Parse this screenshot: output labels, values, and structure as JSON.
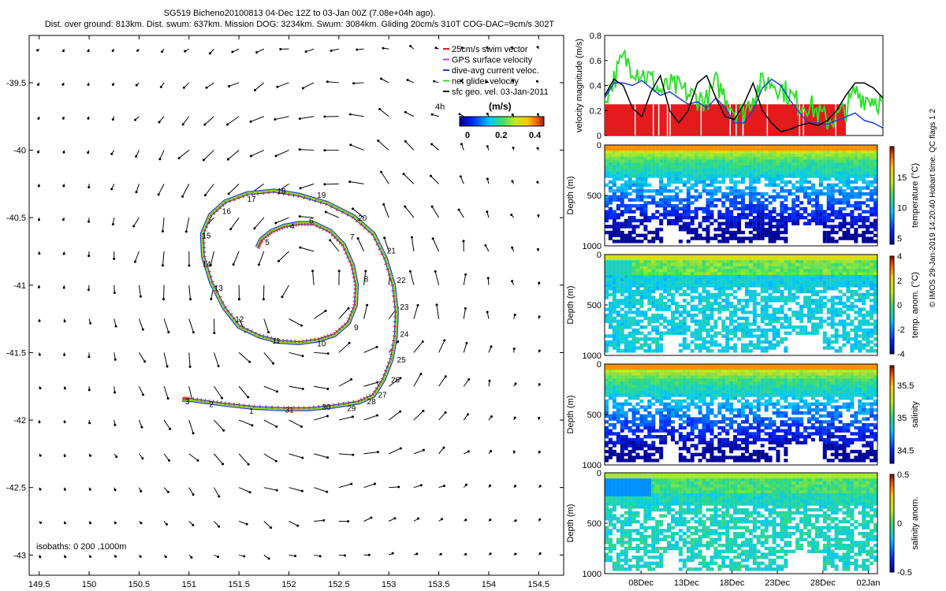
{
  "header": {
    "line1": "SG519 Bicheno20100813 04-Dec 12Z to 03-Jan 00Z (7.08e+04h ago).",
    "line2": "Dist. over ground: 813km. Dist. swum: 637km. Mission DOG: 3234km. Swum: 3084km. Gliding 20cm/s 310T COG-DAC=9cm/s 302T"
  },
  "footer_note": "© IMOS 29-Jan-2019 14:20:40 Hobart time. QC flags 1  2",
  "colors": {
    "swim": "#e41a1c",
    "gps": "#b040ff",
    "dac": "#1f3fd6",
    "net": "#2ee02e",
    "geo": "#000000"
  },
  "chart_data": [
    {
      "type": "scatter",
      "name": "map",
      "xlim": [
        149.4,
        154.75
      ],
      "ylim": [
        -43.15,
        -39.15
      ],
      "x_ticks": [
        "149.5",
        "150",
        "150.5",
        "151",
        "151.5",
        "152",
        "152.5",
        "153",
        "153.5",
        "154",
        "154.5"
      ],
      "x_tick_values": [
        149.5,
        150,
        150.5,
        151,
        151.5,
        152,
        152.5,
        153,
        153.5,
        154,
        154.5
      ],
      "y_ticks": [
        "-39.5",
        "-40",
        "-40.5",
        "-41",
        "-41.5",
        "-42",
        "-42.5",
        "-43"
      ],
      "y_tick_values": [
        -39.5,
        -40,
        -40.5,
        -41,
        -41.5,
        -42,
        -42.5,
        -43
      ],
      "legend": {
        "entries": [
          "25cm/s swim vector",
          "GPS surface velocity",
          "dive-avg current veloc.",
          "net glider velocity",
          "sfc geo. vel. 03-Jan-2011"
        ],
        "position": "top-right"
      },
      "label_4h": "4h",
      "colorbar": {
        "label": "(m/s)",
        "ticks": [
          "0",
          "0.2",
          "0.4"
        ],
        "tick_values": [
          0,
          0.2,
          0.4
        ],
        "range": [
          0,
          0.5
        ]
      },
      "isobaths_label": "isobaths: 0   200 ,1000m",
      "track": [
        [
          151.68,
          -40.72
        ],
        [
          151.72,
          -40.66
        ],
        [
          151.82,
          -40.6
        ],
        [
          151.95,
          -40.56
        ],
        [
          152.1,
          -40.54
        ],
        [
          152.25,
          -40.54
        ],
        [
          152.42,
          -40.6
        ],
        [
          152.55,
          -40.7
        ],
        [
          152.64,
          -40.85
        ],
        [
          152.68,
          -41.0
        ],
        [
          152.67,
          -41.15
        ],
        [
          152.6,
          -41.28
        ],
        [
          152.46,
          -41.37
        ],
        [
          152.3,
          -41.41
        ],
        [
          152.1,
          -41.43
        ],
        [
          151.9,
          -41.42
        ],
        [
          151.7,
          -41.38
        ],
        [
          151.5,
          -41.31
        ],
        [
          151.35,
          -41.17
        ],
        [
          151.22,
          -40.98
        ],
        [
          151.14,
          -40.79
        ],
        [
          151.13,
          -40.62
        ],
        [
          151.21,
          -40.48
        ],
        [
          151.36,
          -40.38
        ],
        [
          151.58,
          -40.32
        ],
        [
          151.85,
          -40.3
        ],
        [
          152.1,
          -40.33
        ],
        [
          152.38,
          -40.39
        ],
        [
          152.65,
          -40.49
        ],
        [
          152.85,
          -40.62
        ],
        [
          152.97,
          -40.8
        ],
        [
          153.05,
          -41.0
        ],
        [
          153.08,
          -41.2
        ],
        [
          153.07,
          -41.38
        ],
        [
          153.03,
          -41.55
        ],
        [
          152.95,
          -41.7
        ],
        [
          152.85,
          -41.82
        ],
        [
          152.7,
          -41.87
        ],
        [
          152.45,
          -41.9
        ],
        [
          152.2,
          -41.92
        ],
        [
          151.95,
          -41.92
        ],
        [
          151.65,
          -41.91
        ],
        [
          151.4,
          -41.89
        ],
        [
          151.2,
          -41.87
        ],
        [
          151.0,
          -41.85
        ],
        [
          150.93,
          -41.85
        ]
      ],
      "track_labels": [
        {
          "t": "1",
          "x": 151.57,
          "y": -41.93
        },
        {
          "t": "2",
          "x": 151.17,
          "y": -41.88
        },
        {
          "t": "3",
          "x": 150.93,
          "y": -41.86
        },
        {
          "t": "4",
          "x": 151.98,
          "y": -40.56
        },
        {
          "t": "5",
          "x": 151.73,
          "y": -40.68
        },
        {
          "t": "6",
          "x": 152.17,
          "y": -40.52
        },
        {
          "t": "7",
          "x": 152.58,
          "y": -40.64
        },
        {
          "t": "8",
          "x": 152.72,
          "y": -40.95
        },
        {
          "t": "9",
          "x": 152.62,
          "y": -41.31
        },
        {
          "t": "10",
          "x": 152.25,
          "y": -41.43
        },
        {
          "t": "11",
          "x": 151.8,
          "y": -41.41
        },
        {
          "t": "12",
          "x": 151.43,
          "y": -41.25
        },
        {
          "t": "13",
          "x": 151.22,
          "y": -41.02
        },
        {
          "t": "14",
          "x": 151.1,
          "y": -40.84
        },
        {
          "t": "15",
          "x": 151.1,
          "y": -40.63
        },
        {
          "t": "16",
          "x": 151.3,
          "y": -40.45
        },
        {
          "t": "17",
          "x": 151.55,
          "y": -40.36
        },
        {
          "t": "18",
          "x": 151.85,
          "y": -40.3
        },
        {
          "t": "19",
          "x": 152.25,
          "y": -40.33
        },
        {
          "t": "20",
          "x": 152.66,
          "y": -40.5
        },
        {
          "t": "21",
          "x": 152.95,
          "y": -40.74
        },
        {
          "t": "22",
          "x": 153.05,
          "y": -40.96
        },
        {
          "t": "23",
          "x": 153.08,
          "y": -41.16
        },
        {
          "t": "24",
          "x": 153.08,
          "y": -41.36
        },
        {
          "t": "25",
          "x": 153.05,
          "y": -41.55
        },
        {
          "t": "26",
          "x": 152.99,
          "y": -41.7
        },
        {
          "t": "27",
          "x": 152.86,
          "y": -41.81
        },
        {
          "t": "28",
          "x": 152.75,
          "y": -41.86
        },
        {
          "t": "29",
          "x": 152.55,
          "y": -41.91
        },
        {
          "t": "30",
          "x": 152.3,
          "y": -41.9
        },
        {
          "t": "31",
          "x": 151.93,
          "y": -41.92
        }
      ],
      "eddy_center": [
        152.1,
        -41.05
      ],
      "vector_grid": {
        "lon_start": 149.5,
        "lon_step": 0.25,
        "lon_count": 21,
        "lat_start": -39.25,
        "lat_step": -0.25,
        "lat_count": 16
      }
    },
    {
      "type": "line",
      "name": "velocity",
      "ylabel": "velocity magnitude (m/s)",
      "ylim": [
        0,
        0.8
      ],
      "y_ticks": [
        "0",
        "0.2",
        "0.4",
        "0.6",
        "0.8"
      ],
      "y_tick_values": [
        0,
        0.2,
        0.4,
        0.6,
        0.8
      ],
      "xlim": [
        0,
        30
      ],
      "swim_level": 0.25,
      "series": [
        {
          "key": "net",
          "values": [
            [
              0,
              0.3
            ],
            [
              1,
              0.45
            ],
            [
              2,
              0.62
            ],
            [
              3,
              0.55
            ],
            [
              4,
              0.5
            ],
            [
              5,
              0.45
            ],
            [
              6,
              0.35
            ],
            [
              7,
              0.4
            ],
            [
              8,
              0.38
            ],
            [
              9,
              0.33
            ],
            [
              10,
              0.3
            ],
            [
              11,
              0.28
            ],
            [
              12,
              0.42
            ],
            [
              13,
              0.32
            ],
            [
              14,
              0.2
            ],
            [
              15,
              0.18
            ],
            [
              16,
              0.32
            ],
            [
              17,
              0.42
            ],
            [
              18,
              0.43
            ],
            [
              19,
              0.38
            ],
            [
              20,
              0.32
            ],
            [
              21,
              0.25
            ],
            [
              22,
              0.25
            ],
            [
              23,
              0.18
            ],
            [
              24,
              0.12
            ],
            [
              25,
              0.15
            ],
            [
              26,
              0.2
            ],
            [
              27,
              0.35
            ],
            [
              28,
              0.3
            ],
            [
              29,
              0.3
            ],
            [
              30,
              0.25
            ]
          ]
        },
        {
          "key": "dac",
          "values": [
            [
              0,
              0.3
            ],
            [
              1,
              0.42
            ],
            [
              2,
              0.42
            ],
            [
              3,
              0.4
            ],
            [
              4,
              0.44
            ],
            [
              5,
              0.38
            ],
            [
              6,
              0.32
            ],
            [
              7,
              0.35
            ],
            [
              8,
              0.3
            ],
            [
              9,
              0.25
            ],
            [
              10,
              0.27
            ],
            [
              11,
              0.22
            ],
            [
              12,
              0.3
            ],
            [
              13,
              0.22
            ],
            [
              14,
              0.1
            ],
            [
              15,
              0.1
            ],
            [
              16,
              0.2
            ],
            [
              17,
              0.38
            ],
            [
              18,
              0.45
            ],
            [
              19,
              0.4
            ],
            [
              20,
              0.28
            ],
            [
              21,
              0.18
            ],
            [
              22,
              0.1
            ],
            [
              23,
              0.1
            ],
            [
              24,
              0.09
            ],
            [
              25,
              0.12
            ],
            [
              26,
              0.15
            ],
            [
              27,
              0.18
            ],
            [
              28,
              0.12
            ],
            [
              29,
              0.1
            ],
            [
              30,
              0.06
            ]
          ]
        },
        {
          "key": "geo",
          "values": [
            [
              0,
              0.32
            ],
            [
              1,
              0.45
            ],
            [
              2,
              0.4
            ],
            [
              3,
              0.22
            ],
            [
              4,
              0.15
            ],
            [
              5,
              0.35
            ],
            [
              6,
              0.48
            ],
            [
              7,
              0.2
            ],
            [
              8,
              0.1
            ],
            [
              9,
              0.2
            ],
            [
              10,
              0.42
            ],
            [
              11,
              0.48
            ],
            [
              12,
              0.3
            ],
            [
              13,
              0.15
            ],
            [
              14,
              0.13
            ],
            [
              15,
              0.25
            ],
            [
              16,
              0.42
            ],
            [
              17,
              0.2
            ],
            [
              18,
              0.1
            ],
            [
              19,
              0.03
            ],
            [
              20,
              0.05
            ],
            [
              21,
              0.08
            ],
            [
              22,
              0.1
            ],
            [
              23,
              0.08
            ],
            [
              24,
              0.12
            ],
            [
              25,
              0.2
            ],
            [
              26,
              0.32
            ],
            [
              27,
              0.42
            ],
            [
              28,
              0.42
            ],
            [
              29,
              0.38
            ],
            [
              30,
              0.3
            ]
          ]
        }
      ]
    },
    {
      "type": "heatmap",
      "name": "temperature",
      "ylabel": "Depth (m)",
      "cbar_label": "temperature (°C)",
      "cbar_ticks": [
        "5",
        "10",
        "15"
      ],
      "cbar_tick_values": [
        5,
        10,
        15
      ],
      "range": [
        4,
        20
      ],
      "y_ticks": [
        "0",
        "500",
        "1000"
      ],
      "surface": 18,
      "deep": 5,
      "mode": "grad"
    },
    {
      "type": "heatmap",
      "name": "temp-anomaly",
      "ylabel": "Depth (m)",
      "cbar_label": "temp. anom. (°C)",
      "cbar_ticks": [
        "4",
        "2",
        "0",
        "-2",
        "-4"
      ],
      "cbar_tick_values": [
        4,
        2,
        0,
        -2,
        -4
      ],
      "range": [
        -4,
        4
      ],
      "y_ticks": [
        "0",
        "500",
        "1000"
      ],
      "mode": "anom"
    },
    {
      "type": "heatmap",
      "name": "salinity",
      "ylabel": "Depth (m)",
      "cbar_label": "salinity",
      "cbar_ticks": [
        "35.5",
        "35",
        "34.5"
      ],
      "cbar_tick_values": [
        35.5,
        35,
        34.5
      ],
      "range": [
        34.3,
        35.8
      ],
      "y_ticks": [
        "0",
        "500",
        "1000"
      ],
      "surface": 35.55,
      "deep": 34.45,
      "mode": "grad"
    },
    {
      "type": "heatmap",
      "name": "salinity-anomaly",
      "ylabel": "Depth (m)",
      "cbar_label": "salinity anom.",
      "cbar_ticks": [
        "0.5",
        "0",
        "-0.5"
      ],
      "cbar_tick_values": [
        0.5,
        0,
        -0.5
      ],
      "range": [
        -0.5,
        0.5
      ],
      "y_ticks": [
        "0",
        "500",
        "1000"
      ],
      "x_ticks": [
        "08Dec",
        "13Dec",
        "18Dec",
        "23Dec",
        "28Dec",
        "02Jan"
      ],
      "x_tick_values": [
        4,
        9,
        14,
        19,
        24,
        29
      ],
      "mode": "sanom"
    }
  ]
}
